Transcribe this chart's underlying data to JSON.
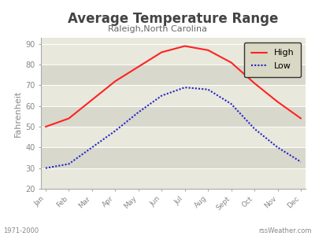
{
  "title": "Average Temperature Range",
  "subtitle": "Raleigh,North Carolina",
  "ylabel": "Fahrenheit",
  "months": [
    "Jan",
    "Feb",
    "Mar",
    "Apr",
    "May",
    "Jun",
    "Jul",
    "Aug",
    "Sept",
    "Oct",
    "Nov",
    "Dec"
  ],
  "high": [
    50,
    54,
    63,
    72,
    79,
    86,
    89,
    87,
    81,
    71,
    62,
    54
  ],
  "low": [
    30,
    32,
    40,
    48,
    57,
    65,
    69,
    68,
    61,
    49,
    40,
    33
  ],
  "high_color": "#ff2222",
  "low_color": "#2222cc",
  "fig_bg": "#ffffff",
  "outer_bg": "#c8c8c8",
  "band_light": "#e8e8dc",
  "band_dark": "#d8d8cc",
  "ylim": [
    20,
    93
  ],
  "yticks": [
    20,
    30,
    40,
    50,
    60,
    70,
    80,
    90
  ],
  "footer_left": "1971-2000",
  "footer_right": "rssWeather.com",
  "legend_high": "High",
  "legend_low": "Low",
  "legend_bg": "#d8d8c4",
  "title_color": "#444444",
  "subtitle_color": "#666666",
  "tick_color": "#888888",
  "spine_color": "#aaaaaa"
}
